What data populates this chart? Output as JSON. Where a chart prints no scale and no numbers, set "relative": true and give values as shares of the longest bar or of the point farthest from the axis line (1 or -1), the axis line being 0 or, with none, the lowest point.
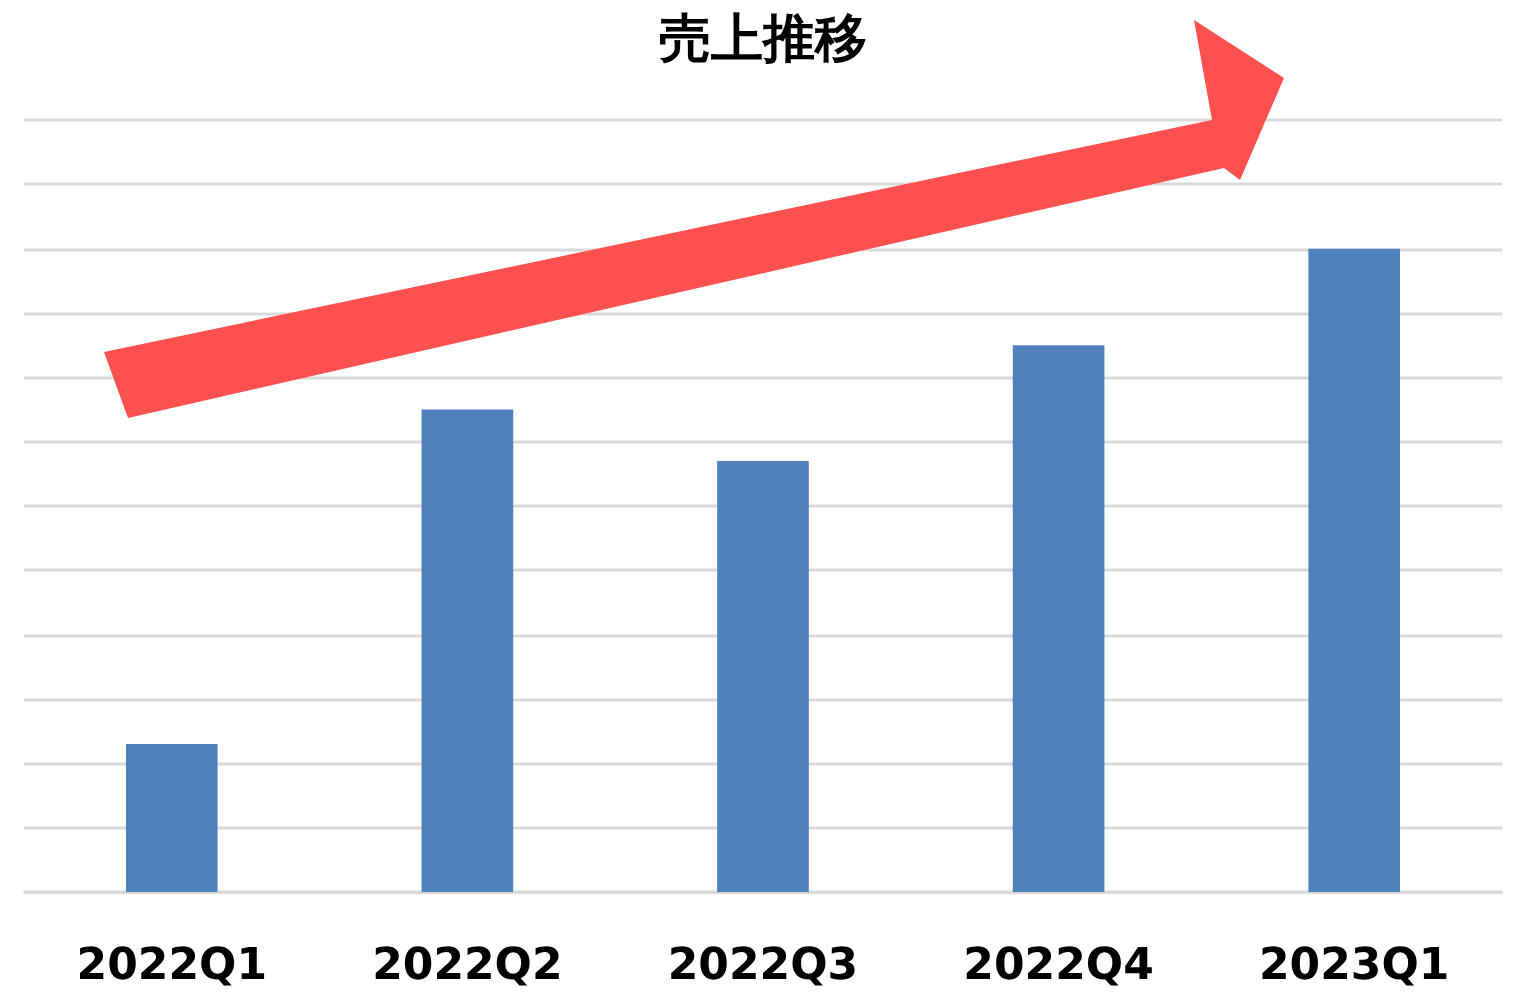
{
  "chart_data": {
    "type": "bar",
    "title": "売上推移",
    "relative": true,
    "grid": true,
    "categories": [
      "2022Q1",
      "2022Q2",
      "2022Q3",
      "2022Q4",
      "2023Q1"
    ],
    "values": [
      0.23,
      0.75,
      0.67,
      0.85,
      1
    ],
    "color": "#4f81bd"
  }
}
